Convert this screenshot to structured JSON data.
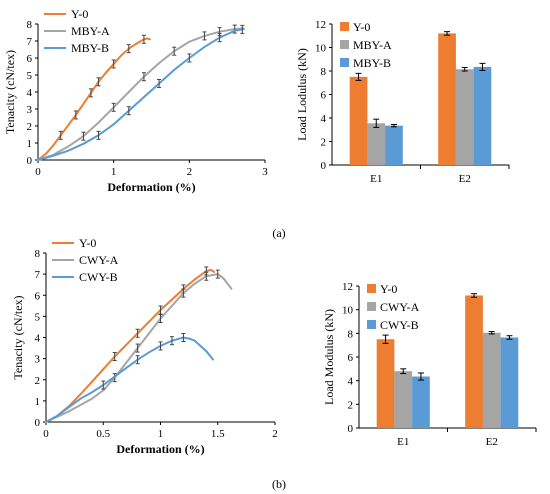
{
  "figure": {
    "panel_a_label": "(a)",
    "panel_b_label": "(b)"
  },
  "colors": {
    "orange": "#ED7D31",
    "gray": "#A5A5A5",
    "blue": "#5B9BD5"
  },
  "chart_data": [
    {
      "id": "a-left",
      "type": "line",
      "title": "",
      "xlabel": "Deformation (%)",
      "ylabel": "Tenacity (cN/tex)",
      "xlim": [
        0,
        3
      ],
      "ylim": [
        0,
        8
      ],
      "xticks": [
        "0",
        "1",
        "2",
        "3"
      ],
      "yticks": [
        "0",
        "1",
        "2",
        "3",
        "4",
        "5",
        "6",
        "7",
        "8"
      ],
      "legend_position": "top-left",
      "series": [
        {
          "name": "Y-0",
          "color": "#ED7D31",
          "x": [
            0,
            0.1,
            0.2,
            0.3,
            0.4,
            0.5,
            0.6,
            0.7,
            0.8,
            0.9,
            1.0,
            1.1,
            1.2,
            1.3,
            1.4,
            1.45,
            1.48
          ],
          "y": [
            0,
            0.35,
            0.85,
            1.45,
            2.05,
            2.65,
            3.3,
            3.95,
            4.6,
            5.15,
            5.65,
            6.15,
            6.55,
            6.85,
            7.1,
            7.15,
            7.1
          ],
          "error_x": [
            0.3,
            0.5,
            0.7,
            0.8,
            1.0,
            1.2,
            1.4
          ]
        },
        {
          "name": "MBY-A",
          "color": "#A5A5A5",
          "x": [
            0,
            0.2,
            0.4,
            0.6,
            0.8,
            1.0,
            1.2,
            1.4,
            1.6,
            1.8,
            2.0,
            2.2,
            2.4,
            2.6,
            2.72
          ],
          "y": [
            0,
            0.3,
            0.8,
            1.4,
            2.2,
            3.1,
            4.0,
            4.9,
            5.7,
            6.4,
            6.95,
            7.3,
            7.55,
            7.7,
            7.75
          ],
          "error_x": [
            0.6,
            1.0,
            1.4,
            1.8,
            2.2,
            2.4,
            2.6
          ]
        },
        {
          "name": "MBY-B",
          "color": "#5B9BD5",
          "x": [
            0,
            0.2,
            0.4,
            0.6,
            0.8,
            1.0,
            1.2,
            1.4,
            1.6,
            1.8,
            2.0,
            2.2,
            2.4,
            2.6,
            2.72
          ],
          "y": [
            0,
            0.25,
            0.55,
            0.95,
            1.45,
            2.1,
            2.9,
            3.7,
            4.5,
            5.3,
            6.0,
            6.65,
            7.2,
            7.6,
            7.7
          ],
          "error_x": [
            0.8,
            1.2,
            1.6,
            2.0,
            2.4,
            2.7
          ]
        }
      ]
    },
    {
      "id": "a-right",
      "type": "bar",
      "title": "",
      "xlabel": "",
      "ylabel": "Load Lodulus (kN)",
      "ylim": [
        0,
        12
      ],
      "yticks": [
        "0",
        "2",
        "4",
        "6",
        "8",
        "10",
        "12"
      ],
      "categories": [
        "E1",
        "E2"
      ],
      "legend_position": "top-left",
      "series": [
        {
          "name": "Y-0",
          "color": "#ED7D31",
          "values": [
            7.5,
            11.2
          ],
          "errors": [
            0.3,
            0.15
          ]
        },
        {
          "name": "MBY-A",
          "color": "#A5A5A5",
          "values": [
            3.55,
            8.15
          ],
          "errors": [
            0.35,
            0.15
          ]
        },
        {
          "name": "MBY-B",
          "color": "#5B9BD5",
          "values": [
            3.35,
            8.35
          ],
          "errors": [
            0.1,
            0.3
          ]
        }
      ]
    },
    {
      "id": "b-left",
      "type": "line",
      "title": "",
      "xlabel": "Deformation (%)",
      "ylabel": "Tenacity (cN/tex)",
      "xlim": [
        0,
        2
      ],
      "ylim": [
        0,
        8
      ],
      "xticks": [
        "0",
        "0.5",
        "1",
        "1.5",
        "2"
      ],
      "yticks": [
        "0",
        "1",
        "2",
        "3",
        "4",
        "5",
        "6",
        "7",
        "8"
      ],
      "legend_position": "top-left",
      "series": [
        {
          "name": "Y-0",
          "color": "#ED7D31",
          "x": [
            0,
            0.1,
            0.2,
            0.3,
            0.4,
            0.5,
            0.6,
            0.7,
            0.8,
            0.9,
            1.0,
            1.1,
            1.2,
            1.3,
            1.4,
            1.44,
            1.47
          ],
          "y": [
            0,
            0.3,
            0.75,
            1.3,
            1.9,
            2.5,
            3.1,
            3.65,
            4.2,
            4.75,
            5.3,
            5.8,
            6.3,
            6.75,
            7.15,
            7.2,
            7.1
          ],
          "error_x": [
            0.6,
            0.8,
            1.0,
            1.2,
            1.4
          ]
        },
        {
          "name": "CWY-A",
          "color": "#A5A5A5",
          "x": [
            0,
            0.2,
            0.4,
            0.5,
            0.6,
            0.7,
            0.8,
            0.9,
            1.0,
            1.1,
            1.2,
            1.3,
            1.4,
            1.5,
            1.55,
            1.62
          ],
          "y": [
            0,
            0.5,
            1.1,
            1.5,
            2.1,
            2.8,
            3.5,
            4.2,
            4.9,
            5.5,
            6.1,
            6.55,
            6.9,
            7.0,
            6.8,
            6.3
          ],
          "error_x": [
            0.6,
            0.8,
            1.0,
            1.2,
            1.4,
            1.5
          ]
        },
        {
          "name": "CWY-B",
          "color": "#5B9BD5",
          "x": [
            0,
            0.1,
            0.2,
            0.3,
            0.4,
            0.5,
            0.6,
            0.7,
            0.8,
            0.9,
            1.0,
            1.1,
            1.2,
            1.25,
            1.3,
            1.4,
            1.46
          ],
          "y": [
            0,
            0.3,
            0.7,
            1.1,
            1.4,
            1.75,
            2.15,
            2.55,
            2.95,
            3.3,
            3.6,
            3.85,
            4.0,
            3.95,
            3.85,
            3.35,
            2.95
          ],
          "error_x": [
            0.5,
            0.8,
            1.0,
            1.1,
            1.2
          ]
        }
      ]
    },
    {
      "id": "b-right",
      "type": "bar",
      "title": "",
      "xlabel": "",
      "ylabel": "Load Modulus (kN)",
      "ylim": [
        0,
        12
      ],
      "yticks": [
        "0",
        "2",
        "4",
        "6",
        "8",
        "10",
        "12"
      ],
      "categories": [
        "E1",
        "E2"
      ],
      "legend_position": "top-left",
      "series": [
        {
          "name": "Y-0",
          "color": "#ED7D31",
          "values": [
            7.5,
            11.2
          ],
          "errors": [
            0.35,
            0.15
          ]
        },
        {
          "name": "CWY-A",
          "color": "#A5A5A5",
          "values": [
            4.8,
            8.05
          ],
          "errors": [
            0.2,
            0.1
          ]
        },
        {
          "name": "CWY-B",
          "color": "#5B9BD5",
          "values": [
            4.35,
            7.65
          ],
          "errors": [
            0.3,
            0.15
          ]
        }
      ]
    }
  ]
}
